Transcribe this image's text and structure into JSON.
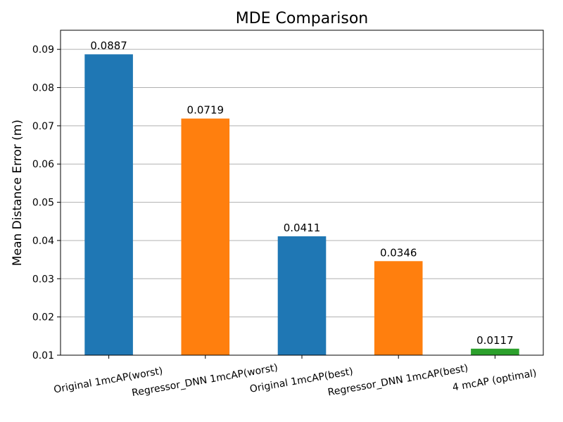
{
  "chart_data": {
    "type": "bar",
    "title": "MDE Comparison",
    "xlabel": "",
    "ylabel": "Mean Distance Error (m)",
    "categories": [
      "Original 1mcAP(worst)",
      "Regressor_DNN 1mcAP(worst)",
      "Original 1mcAP(best)",
      "Regressor_DNN 1mcAP(best)",
      "4 mcAP (optimal)"
    ],
    "values": [
      0.0887,
      0.0719,
      0.0411,
      0.0346,
      0.0117
    ],
    "value_labels": [
      "0.0887",
      "0.0719",
      "0.0411",
      "0.0346",
      "0.0117"
    ],
    "bar_colors": [
      "#1f77b4",
      "#ff7f0e",
      "#1f77b4",
      "#ff7f0e",
      "#2ca02c"
    ],
    "ylim": [
      0.01,
      0.095
    ],
    "yticks": [
      0.01,
      0.02,
      0.03,
      0.04,
      0.05,
      0.06,
      0.07,
      0.08,
      0.09
    ],
    "ytick_labels": [
      "0.01",
      "0.02",
      "0.03",
      "0.04",
      "0.05",
      "0.06",
      "0.07",
      "0.08",
      "0.09"
    ],
    "grid": "horizontal",
    "legend": "none"
  }
}
